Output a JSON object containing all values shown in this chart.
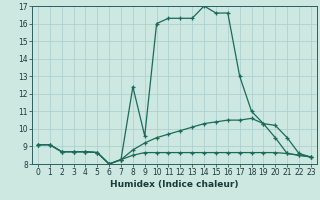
{
  "xlabel": "Humidex (Indice chaleur)",
  "bg_color": "#cce8e0",
  "grid_color": "#aacccc",
  "line_color": "#1a6b5a",
  "xlim": [
    -0.5,
    23.5
  ],
  "ylim": [
    8,
    17
  ],
  "yticks": [
    8,
    9,
    10,
    11,
    12,
    13,
    14,
    15,
    16,
    17
  ],
  "xticks": [
    0,
    1,
    2,
    3,
    4,
    5,
    6,
    7,
    8,
    9,
    10,
    11,
    12,
    13,
    14,
    15,
    16,
    17,
    18,
    19,
    20,
    21,
    22,
    23
  ],
  "lines": [
    {
      "x": [
        0,
        1,
        2,
        3,
        4,
        5,
        6,
        7,
        8,
        9,
        10,
        11,
        12,
        13,
        14,
        15,
        16,
        17,
        18,
        19,
        20,
        21,
        22,
        23
      ],
      "y": [
        9.1,
        9.1,
        8.7,
        8.7,
        8.7,
        8.65,
        8.0,
        8.25,
        12.4,
        9.6,
        16.0,
        16.3,
        16.3,
        16.3,
        17.0,
        16.6,
        16.6,
        13.0,
        11.0,
        10.3,
        9.5,
        8.6,
        8.5,
        8.4
      ]
    },
    {
      "x": [
        0,
        1,
        2,
        3,
        4,
        5,
        6,
        7,
        8,
        9,
        10,
        11,
        12,
        13,
        14,
        15,
        16,
        17,
        18,
        19,
        20,
        21,
        22,
        23
      ],
      "y": [
        9.1,
        9.1,
        8.7,
        8.7,
        8.7,
        8.65,
        8.0,
        8.25,
        8.8,
        9.2,
        9.5,
        9.7,
        9.9,
        10.1,
        10.3,
        10.4,
        10.5,
        10.5,
        10.6,
        10.3,
        10.2,
        9.5,
        8.6,
        8.4
      ]
    },
    {
      "x": [
        0,
        1,
        2,
        3,
        4,
        5,
        6,
        7,
        8,
        9,
        10,
        11,
        12,
        13,
        14,
        15,
        16,
        17,
        18,
        19,
        20,
        21,
        22,
        23
      ],
      "y": [
        9.1,
        9.1,
        8.7,
        8.7,
        8.7,
        8.65,
        8.0,
        8.25,
        8.5,
        8.65,
        8.65,
        8.65,
        8.65,
        8.65,
        8.65,
        8.65,
        8.65,
        8.65,
        8.65,
        8.65,
        8.65,
        8.6,
        8.5,
        8.4
      ]
    }
  ]
}
